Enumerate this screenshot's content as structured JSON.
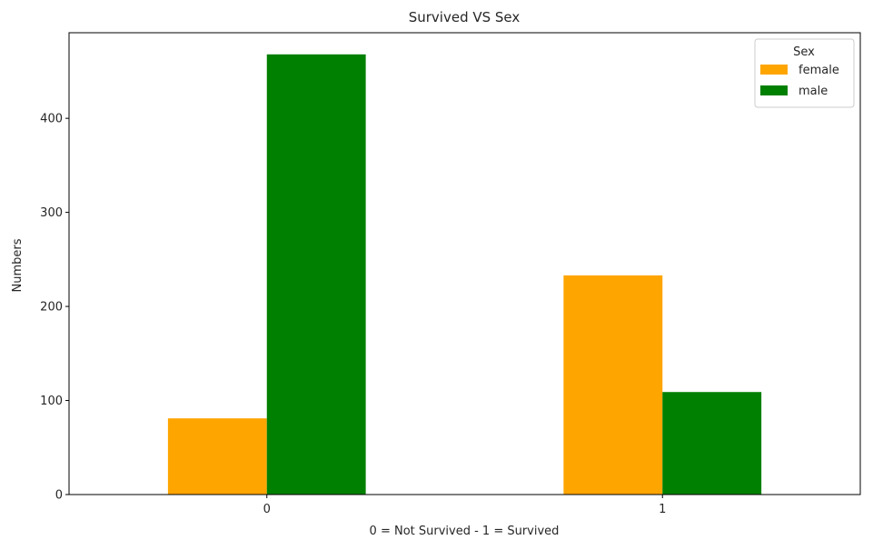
{
  "chart_data": {
    "type": "bar",
    "title": "Survived VS Sex",
    "xlabel": "0 = Not Survived - 1 = Survived",
    "ylabel": "Numbers",
    "categories": [
      "0",
      "1"
    ],
    "series": [
      {
        "name": "female",
        "values": [
          81,
          233
        ],
        "color": "#FFA500"
      },
      {
        "name": "male",
        "values": [
          468,
          109
        ],
        "color": "#008000"
      }
    ],
    "ylim": [
      0,
      491
    ],
    "yticks": [
      0,
      100,
      200,
      300,
      400
    ],
    "grid": false,
    "legend": {
      "title": "Sex",
      "position": "top-right"
    }
  }
}
